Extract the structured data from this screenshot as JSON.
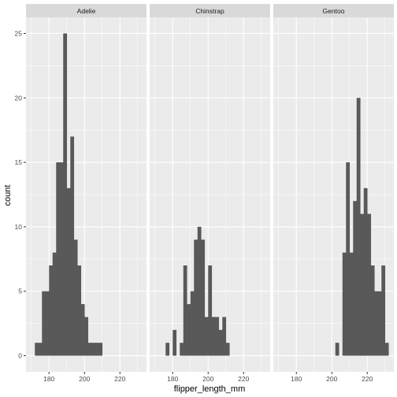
{
  "chart_data": {
    "type": "bar",
    "xlabel": "flipper_length_mm",
    "ylabel": "count",
    "xlim": [
      167,
      235
    ],
    "ylim": [
      -1.25,
      26.25
    ],
    "x_ticks": [
      180,
      200,
      220
    ],
    "y_ticks": [
      0,
      5,
      10,
      15,
      20,
      25
    ],
    "bin_width": 2,
    "grid": true,
    "colors": {
      "bar": "#595959",
      "panel": "#ebebeb",
      "grid": "#ffffff",
      "strip": "#d9d9d9"
    },
    "facets": [
      {
        "label": "Adelie",
        "bins": [
          {
            "x": 173,
            "count": 1
          },
          {
            "x": 175,
            "count": 1
          },
          {
            "x": 177,
            "count": 5
          },
          {
            "x": 179,
            "count": 5
          },
          {
            "x": 181,
            "count": 7
          },
          {
            "x": 183,
            "count": 8
          },
          {
            "x": 185,
            "count": 15
          },
          {
            "x": 187,
            "count": 15
          },
          {
            "x": 189,
            "count": 25
          },
          {
            "x": 191,
            "count": 13
          },
          {
            "x": 193,
            "count": 17
          },
          {
            "x": 195,
            "count": 9
          },
          {
            "x": 197,
            "count": 7
          },
          {
            "x": 199,
            "count": 4
          },
          {
            "x": 201,
            "count": 3
          },
          {
            "x": 203,
            "count": 1
          },
          {
            "x": 205,
            "count": 1
          },
          {
            "x": 207,
            "count": 1
          },
          {
            "x": 209,
            "count": 1
          }
        ]
      },
      {
        "label": "Chinstrap",
        "bins": [
          {
            "x": 177,
            "count": 1
          },
          {
            "x": 181,
            "count": 2
          },
          {
            "x": 185,
            "count": 1
          },
          {
            "x": 187,
            "count": 7
          },
          {
            "x": 189,
            "count": 4
          },
          {
            "x": 191,
            "count": 5
          },
          {
            "x": 193,
            "count": 9
          },
          {
            "x": 195,
            "count": 10
          },
          {
            "x": 197,
            "count": 9
          },
          {
            "x": 199,
            "count": 3
          },
          {
            "x": 201,
            "count": 7
          },
          {
            "x": 203,
            "count": 3
          },
          {
            "x": 205,
            "count": 3
          },
          {
            "x": 207,
            "count": 2
          },
          {
            "x": 209,
            "count": 3
          },
          {
            "x": 211,
            "count": 1
          }
        ]
      },
      {
        "label": "Gentoo",
        "bins": [
          {
            "x": 203,
            "count": 1
          },
          {
            "x": 207,
            "count": 8
          },
          {
            "x": 209,
            "count": 15
          },
          {
            "x": 211,
            "count": 8
          },
          {
            "x": 213,
            "count": 12
          },
          {
            "x": 215,
            "count": 20
          },
          {
            "x": 217,
            "count": 11
          },
          {
            "x": 219,
            "count": 13
          },
          {
            "x": 221,
            "count": 11
          },
          {
            "x": 223,
            "count": 7
          },
          {
            "x": 225,
            "count": 5
          },
          {
            "x": 227,
            "count": 5
          },
          {
            "x": 229,
            "count": 7
          },
          {
            "x": 231,
            "count": 1
          }
        ]
      }
    ]
  }
}
